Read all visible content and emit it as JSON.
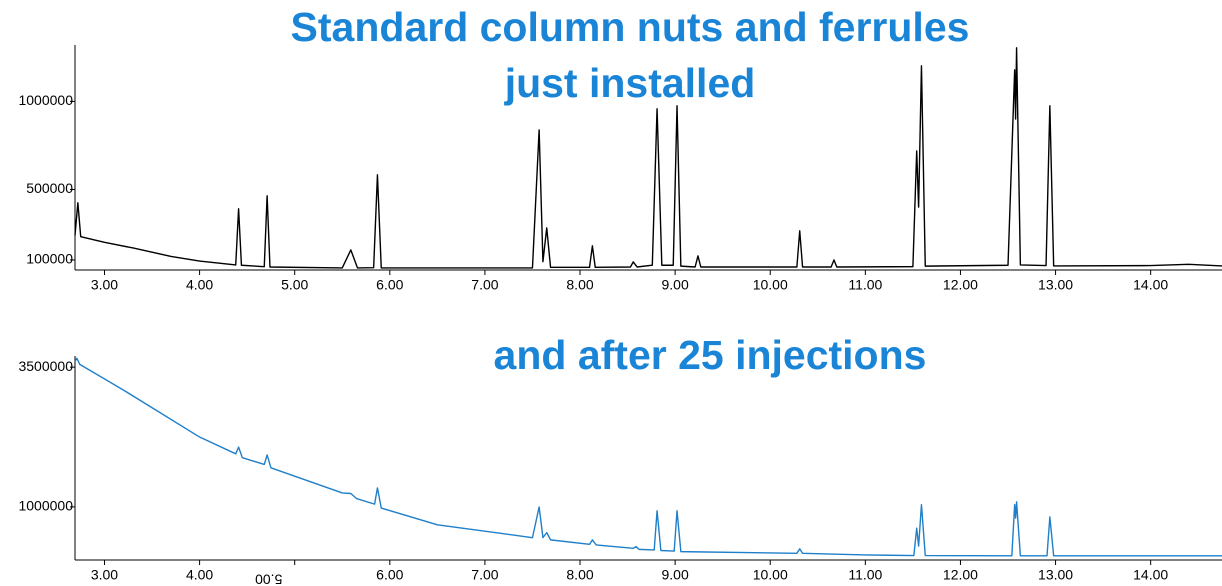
{
  "chart_data": [
    {
      "type": "line",
      "title": [
        "Standard column nuts and ferrules",
        "just installed"
      ],
      "color": "#000000",
      "xlim": [
        2.69,
        14.75
      ],
      "ylim": [
        43000,
        1320000
      ],
      "xticks": [
        {
          "value": 3,
          "label": "3.00"
        },
        {
          "value": 4,
          "label": "4.00"
        },
        {
          "value": 5,
          "label": "5.00"
        },
        {
          "value": 6,
          "label": "6.00"
        },
        {
          "value": 7,
          "label": "7.00"
        },
        {
          "value": 8,
          "label": "8.00"
        },
        {
          "value": 9,
          "label": "9.00"
        },
        {
          "value": 10,
          "label": "10.00"
        },
        {
          "value": 11,
          "label": "11.00"
        },
        {
          "value": 12,
          "label": "12.00"
        },
        {
          "value": 13,
          "label": "13.00"
        },
        {
          "value": 14,
          "label": "14.00"
        }
      ],
      "yticks": [
        100000,
        500000,
        1000000
      ],
      "x": [
        2.69,
        2.72,
        2.75,
        3.0,
        3.3,
        3.7,
        4.0,
        4.38,
        4.41,
        4.44,
        4.68,
        4.71,
        4.74,
        5.5,
        5.59,
        5.66,
        5.83,
        5.87,
        5.91,
        7.5,
        7.57,
        7.61,
        7.65,
        7.69,
        8.1,
        8.13,
        8.16,
        8.53,
        8.56,
        8.6,
        8.76,
        8.81,
        8.86,
        8.98,
        9.02,
        9.06,
        9.21,
        9.24,
        9.27,
        10.28,
        10.31,
        10.34,
        10.64,
        10.67,
        10.7,
        11.5,
        11.54,
        11.56,
        11.59,
        11.63,
        12.5,
        12.57,
        12.58,
        12.59,
        12.63,
        12.9,
        12.94,
        12.98,
        14.0,
        14.4,
        14.75
      ],
      "values": [
        240000,
        424000,
        232000,
        200000,
        168000,
        120000,
        94000,
        72000,
        390000,
        70000,
        62000,
        464000,
        60000,
        55000,
        157000,
        55000,
        56000,
        583000,
        55000,
        55000,
        838000,
        90000,
        282000,
        58000,
        58000,
        180000,
        58000,
        60000,
        89000,
        60000,
        70000,
        958000,
        70000,
        70000,
        975000,
        65000,
        60000,
        123000,
        60000,
        60000,
        265000,
        60000,
        60000,
        100000,
        60000,
        62000,
        719000,
        400000,
        1202000,
        65000,
        70000,
        1179000,
        900000,
        1304000,
        72000,
        68000,
        975000,
        66000,
        68000,
        75000,
        66000
      ]
    },
    {
      "type": "line",
      "title": [
        "and after 25 injections"
      ],
      "color": "#1f7fc9",
      "xlim": [
        2.69,
        14.75
      ],
      "ylim": [
        50000,
        3700000
      ],
      "xticks": [
        {
          "value": 3,
          "label": "3.00"
        },
        {
          "value": 4,
          "label": "4.00"
        },
        {
          "value": 5,
          "label": "5.00",
          "rotate": 180
        },
        {
          "value": 6,
          "label": "6.00"
        },
        {
          "value": 7,
          "label": "7.00"
        },
        {
          "value": 8,
          "label": "8.00"
        },
        {
          "value": 9,
          "label": "9.00"
        },
        {
          "value": 10,
          "label": "10.00"
        },
        {
          "value": 11,
          "label": "11.00"
        },
        {
          "value": 12,
          "label": "12.00"
        },
        {
          "value": 13,
          "label": "13.00"
        },
        {
          "value": 14,
          "label": "14.00"
        }
      ],
      "yticks": [
        1000000,
        3500000
      ],
      "x": [
        2.69,
        2.71,
        2.74,
        3.2,
        4.0,
        4.38,
        4.41,
        4.45,
        4.68,
        4.71,
        4.75,
        5.5,
        5.59,
        5.65,
        5.84,
        5.87,
        5.91,
        6.5,
        7.5,
        7.57,
        7.61,
        7.65,
        7.69,
        8.1,
        8.13,
        8.17,
        8.56,
        8.59,
        8.62,
        8.78,
        8.81,
        8.85,
        8.99,
        9.02,
        9.06,
        10.28,
        10.31,
        10.34,
        11.0,
        11.51,
        11.54,
        11.56,
        11.59,
        11.63,
        12.54,
        12.57,
        12.58,
        12.59,
        12.63,
        12.91,
        12.94,
        12.98,
        14.75
      ],
      "values": [
        3600000,
        3660000,
        3550000,
        3090000,
        2250000,
        1950000,
        2070000,
        1880000,
        1760000,
        1930000,
        1700000,
        1250000,
        1240000,
        1150000,
        1050000,
        1340000,
        980000,
        680000,
        450000,
        1000000,
        450000,
        540000,
        410000,
        330000,
        410000,
        320000,
        260000,
        290000,
        240000,
        230000,
        930000,
        220000,
        210000,
        930000,
        200000,
        170000,
        250000,
        170000,
        140000,
        130000,
        620000,
        300000,
        1040000,
        130000,
        125000,
        1040000,
        800000,
        1090000,
        125000,
        125000,
        820000,
        125000,
        125000
      ]
    }
  ]
}
